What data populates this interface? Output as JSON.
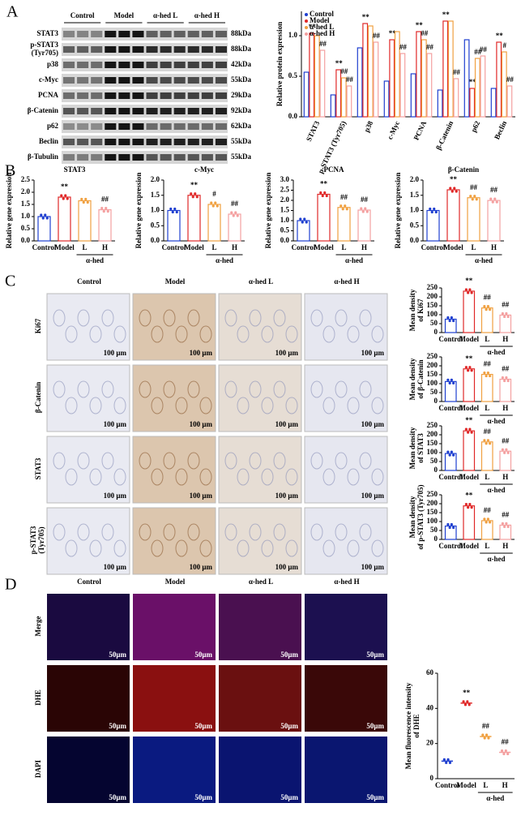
{
  "panels": [
    "A",
    "B",
    "C",
    "D"
  ],
  "blot": {
    "groups": [
      "Control",
      "Model",
      "α-hed L",
      "α-hed H"
    ],
    "proteins": [
      "STAT3",
      "p-STAT3",
      "p38",
      "c-Myc",
      "PCNA",
      "β-Catenin",
      "p62",
      "Beclin",
      "β-Tubulin"
    ],
    "protein_notes": [
      null,
      "(Tyr705)",
      null,
      null,
      null,
      null,
      null,
      null,
      null
    ],
    "sizes": [
      "88kDa",
      "88kDa",
      "42kDa",
      "55kDa",
      "29kDa",
      "92kDa",
      "62kDa",
      "55kDa",
      "55kDa"
    ]
  },
  "ihc": {
    "columns": [
      "Control",
      "Model",
      "α-hed  L",
      "α-hed  H"
    ],
    "rows": [
      "Ki67",
      "β-Catenin",
      "STAT3",
      "p-STAT3"
    ],
    "row_notes": [
      null,
      null,
      null,
      "(Tyr705)"
    ],
    "scale_bar": "100 μm"
  },
  "fluorescence": {
    "columns": [
      "Control",
      "Model",
      "α-hed  L",
      "α-hed  H"
    ],
    "rows": [
      "Merge",
      "DHE",
      "DAPI"
    ],
    "scale_bar": "50μm"
  },
  "chart_data": [
    {
      "type": "bar",
      "ylabel": [
        "Relative protein expression"
      ],
      "legend": "upper-left",
      "categories": [
        "STAT3",
        "p-STAT3 (Tyr705)",
        "p38",
        "c-Myc",
        "PCNA",
        "β-Catenin",
        "p62",
        "Beclin"
      ],
      "ylim": [
        0,
        1.3
      ],
      "yticks": [
        {
          "value": 0,
          "label": "0.0"
        },
        {
          "value": 0.5,
          "label": "0.5"
        },
        {
          "value": 1,
          "label": "1.0"
        }
      ],
      "series": [
        {
          "name": "Control",
          "color": "#1f3fd0",
          "values": [
            0.55,
            0.27,
            0.85,
            0.44,
            0.53,
            0.33,
            0.95,
            0.35
          ]
        },
        {
          "name": "Model",
          "color": "#e02828",
          "values": [
            1.03,
            0.58,
            1.15,
            0.95,
            1.05,
            1.18,
            0.35,
            0.92
          ],
          "sig": [
            "**",
            "**",
            "**",
            "**",
            "**",
            "**",
            "**",
            "**"
          ]
        },
        {
          "name": "α-hed L",
          "color": "#f0a040",
          "values": [
            1.0,
            0.48,
            1.12,
            1.05,
            0.95,
            1.18,
            0.72,
            0.8
          ],
          "sig": [
            null,
            "##",
            null,
            null,
            "##",
            null,
            "##",
            "#"
          ]
        },
        {
          "name": "α-hed H",
          "color": "#f4a0a0",
          "values": [
            0.82,
            0.38,
            0.92,
            0.78,
            0.78,
            0.47,
            0.75,
            0.38
          ],
          "sig": [
            "##",
            "##",
            "##",
            "##",
            "##",
            "##",
            "##",
            "##"
          ]
        }
      ]
    },
    {
      "type": "bar",
      "title": "STAT3",
      "ylabel": [
        "Relative gene expression"
      ],
      "categories": [
        "Control",
        "Model",
        "L",
        "H"
      ],
      "group_label": "α-hed",
      "values": [
        1.0,
        1.8,
        1.65,
        1.28
      ],
      "sig": [
        null,
        "**",
        null,
        "##"
      ],
      "colors": [
        "#1f3fd0",
        "#e02828",
        "#f0a040",
        "#f4a0a0"
      ],
      "ylim": [
        0,
        2.5
      ],
      "yticks": [
        {
          "value": 0,
          "label": "0.0"
        },
        {
          "value": 0.5,
          "label": "0.5"
        },
        {
          "value": 1,
          "label": "1.0"
        },
        {
          "value": 1.5,
          "label": "1.5"
        },
        {
          "value": 2,
          "label": "2.0"
        },
        {
          "value": 2.5,
          "label": "2.5"
        }
      ]
    },
    {
      "type": "bar",
      "title": "c-Myc",
      "ylabel": [
        "Relative gene expression"
      ],
      "categories": [
        "Control",
        "Model",
        "L",
        "H"
      ],
      "group_label": "α-hed",
      "values": [
        1.0,
        1.5,
        1.2,
        0.88
      ],
      "sig": [
        null,
        "**",
        "#",
        "##"
      ],
      "colors": [
        "#1f3fd0",
        "#e02828",
        "#f0a040",
        "#f4a0a0"
      ],
      "ylim": [
        0,
        2.0
      ],
      "yticks": [
        {
          "value": 0,
          "label": "0.0"
        },
        {
          "value": 0.5,
          "label": "0.5"
        },
        {
          "value": 1,
          "label": "1.0"
        },
        {
          "value": 1.5,
          "label": "1.5"
        },
        {
          "value": 2,
          "label": "2.0"
        }
      ]
    },
    {
      "type": "bar",
      "title": "PCNA",
      "ylabel": [
        "Relative gene expression"
      ],
      "categories": [
        "Control",
        "Model",
        "L",
        "H"
      ],
      "group_label": "α-hed",
      "values": [
        1.0,
        2.3,
        1.65,
        1.52
      ],
      "sig": [
        null,
        "**",
        "##",
        "##"
      ],
      "colors": [
        "#1f3fd0",
        "#e02828",
        "#f0a040",
        "#f4a0a0"
      ],
      "ylim": [
        0,
        3.0
      ],
      "yticks": [
        {
          "value": 0,
          "label": "0.0"
        },
        {
          "value": 0.5,
          "label": "0.5"
        },
        {
          "value": 1,
          "label": "1.0"
        },
        {
          "value": 1.5,
          "label": "1.5"
        },
        {
          "value": 2,
          "label": "2.0"
        },
        {
          "value": 2.5,
          "label": "2.5"
        },
        {
          "value": 3,
          "label": "3.0"
        }
      ]
    },
    {
      "type": "bar",
      "title": "β-Catenin",
      "ylabel": [
        "Relative gene expression"
      ],
      "categories": [
        "Control",
        "Model",
        "L",
        "H"
      ],
      "group_label": "α-hed",
      "values": [
        1.0,
        1.68,
        1.42,
        1.33
      ],
      "sig": [
        null,
        "**",
        "##",
        "##"
      ],
      "colors": [
        "#1f3fd0",
        "#e02828",
        "#f0a040",
        "#f4a0a0"
      ],
      "ylim": [
        0,
        2.0
      ],
      "yticks": [
        {
          "value": 0,
          "label": "0.0"
        },
        {
          "value": 0.5,
          "label": "0.5"
        },
        {
          "value": 1,
          "label": "1.0"
        },
        {
          "value": 1.5,
          "label": "1.5"
        },
        {
          "value": 2,
          "label": "2.0"
        }
      ]
    },
    {
      "type": "bar",
      "ylabel": [
        "Mean density",
        "of Ki67"
      ],
      "categories": [
        "Control",
        "Model",
        "L",
        "H"
      ],
      "group_label": "α-hed",
      "values": [
        75,
        232,
        138,
        98
      ],
      "sig": [
        null,
        "**",
        "##",
        "##"
      ],
      "colors": [
        "#1f3fd0",
        "#e02828",
        "#f0a040",
        "#f4a0a0"
      ],
      "ylim": [
        0,
        250
      ],
      "yticks": [
        0,
        50,
        100,
        150,
        200,
        250
      ]
    },
    {
      "type": "bar",
      "ylabel": [
        "Mean density",
        "of β-Catenin"
      ],
      "categories": [
        "Control",
        "Model",
        "L",
        "H"
      ],
      "group_label": "α-hed",
      "values": [
        112,
        183,
        152,
        125
      ],
      "sig": [
        null,
        "**",
        "##",
        "##"
      ],
      "colors": [
        "#1f3fd0",
        "#e02828",
        "#f0a040",
        "#f4a0a0"
      ],
      "ylim": [
        0,
        250
      ],
      "yticks": [
        0,
        50,
        100,
        150,
        200,
        250
      ]
    },
    {
      "type": "bar",
      "ylabel": [
        "Mean density",
        "of STAT3"
      ],
      "categories": [
        "Control",
        "Model",
        "L",
        "H"
      ],
      "group_label": "α-hed",
      "values": [
        95,
        222,
        160,
        108
      ],
      "sig": [
        null,
        "**",
        "##",
        "##"
      ],
      "colors": [
        "#1f3fd0",
        "#e02828",
        "#f0a040",
        "#f4a0a0"
      ],
      "ylim": [
        0,
        250
      ],
      "yticks": [
        0,
        50,
        100,
        150,
        200,
        250
      ]
    },
    {
      "type": "bar",
      "ylabel": [
        "Mean density",
        "of p-STAT3 (Tyr705)"
      ],
      "categories": [
        "Control",
        "Model",
        "L",
        "H"
      ],
      "group_label": "α-hed",
      "values": [
        75,
        188,
        105,
        80
      ],
      "sig": [
        null,
        "**",
        "##",
        "##"
      ],
      "colors": [
        "#1f3fd0",
        "#e02828",
        "#f0a040",
        "#f4a0a0"
      ],
      "ylim": [
        0,
        250
      ],
      "yticks": [
        0,
        50,
        100,
        150,
        200,
        250
      ]
    },
    {
      "type": "dot",
      "ylabel": [
        "Mean fluorescence intensity",
        "of DHE"
      ],
      "categories": [
        "Control",
        "Model",
        "L",
        "H"
      ],
      "group_label": "α-hed",
      "values": [
        10,
        43,
        24,
        15
      ],
      "sig": [
        null,
        "**",
        "##",
        "##"
      ],
      "colors": [
        "#1f3fd0",
        "#e02828",
        "#f0a040",
        "#f4a0a0"
      ],
      "ylim": [
        0,
        60
      ],
      "yticks": [
        0,
        20,
        40,
        60
      ]
    }
  ]
}
